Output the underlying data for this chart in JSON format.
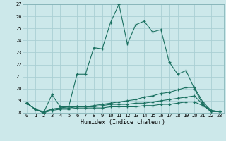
{
  "xlabel": "Humidex (Indice chaleur)",
  "xlim": [
    -0.5,
    23.5
  ],
  "ylim": [
    18,
    27
  ],
  "yticks": [
    18,
    19,
    20,
    21,
    22,
    23,
    24,
    25,
    26,
    27
  ],
  "xticks": [
    0,
    1,
    2,
    3,
    4,
    5,
    6,
    7,
    8,
    9,
    10,
    11,
    12,
    13,
    14,
    15,
    16,
    17,
    18,
    19,
    20,
    21,
    22,
    23
  ],
  "bg_color": "#cce8ea",
  "line_color": "#1a7060",
  "grid_color": "#aacfd4",
  "line1_x": [
    0,
    1,
    2,
    3,
    4,
    5,
    6,
    7,
    8,
    9,
    10,
    11,
    12,
    13,
    14,
    15,
    16,
    17,
    18,
    19,
    20,
    21,
    22,
    23
  ],
  "line1_y": [
    18.8,
    18.3,
    18.0,
    19.5,
    18.5,
    18.5,
    21.2,
    21.2,
    23.4,
    23.3,
    25.5,
    27.0,
    23.7,
    25.3,
    25.6,
    24.7,
    24.9,
    22.2,
    21.2,
    21.5,
    20.0,
    18.7,
    18.1,
    18.1
  ],
  "line2_x": [
    0,
    1,
    2,
    3,
    4,
    5,
    6,
    7,
    8,
    9,
    10,
    11,
    12,
    13,
    14,
    15,
    16,
    17,
    18,
    19,
    20,
    21,
    22,
    23
  ],
  "line2_y": [
    18.8,
    18.3,
    18.1,
    18.3,
    18.4,
    18.5,
    18.5,
    18.5,
    18.6,
    18.7,
    18.8,
    18.9,
    19.0,
    19.1,
    19.3,
    19.4,
    19.6,
    19.7,
    19.9,
    20.1,
    20.1,
    18.9,
    18.2,
    18.1
  ],
  "line3_x": [
    0,
    1,
    2,
    3,
    4,
    5,
    6,
    7,
    8,
    9,
    10,
    11,
    12,
    13,
    14,
    15,
    16,
    17,
    18,
    19,
    20,
    21,
    22,
    23
  ],
  "line3_y": [
    18.8,
    18.3,
    18.0,
    18.3,
    18.4,
    18.4,
    18.5,
    18.5,
    18.5,
    18.6,
    18.7,
    18.7,
    18.7,
    18.8,
    18.8,
    18.9,
    19.0,
    19.1,
    19.2,
    19.3,
    19.4,
    18.7,
    18.2,
    18.1
  ],
  "line4_x": [
    0,
    1,
    2,
    3,
    4,
    5,
    6,
    7,
    8,
    9,
    10,
    11,
    12,
    13,
    14,
    15,
    16,
    17,
    18,
    19,
    20,
    21,
    22,
    23
  ],
  "line4_y": [
    18.8,
    18.3,
    18.0,
    18.2,
    18.3,
    18.3,
    18.4,
    18.4,
    18.4,
    18.4,
    18.5,
    18.5,
    18.5,
    18.5,
    18.6,
    18.6,
    18.7,
    18.7,
    18.8,
    18.9,
    18.9,
    18.6,
    18.1,
    18.1
  ]
}
